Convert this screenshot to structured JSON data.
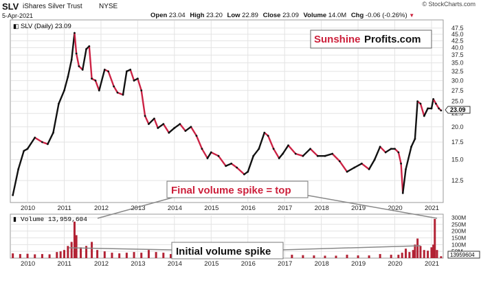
{
  "header": {
    "symbol": "SLV",
    "name": "iShares Silver Trust",
    "exchange": "NYSE",
    "date": "5-Apr-2021",
    "stats": {
      "open_label": "Open",
      "open": "23.04",
      "high_label": "High",
      "high": "23.20",
      "low_label": "Low",
      "low": "22.89",
      "close_label": "Close",
      "close": "23.09",
      "volume_label": "Volume",
      "volume": "14.0M",
      "chg_label": "Chg",
      "chg": "-0.06 (-0.26%)"
    },
    "copyright": "© StockCharts.com"
  },
  "price_panel": {
    "legend": "SLV (Daily) 23.09",
    "current_tag": "23.09",
    "watermark_red": "Sunshine",
    "watermark_black": "Profits.com",
    "annotation_top": "Final volume spike = top"
  },
  "volume_panel": {
    "legend": "Volume 13,959,604",
    "current_tag": "13959604",
    "annotation": "Initial volume spike"
  },
  "colors": {
    "up": "#111111",
    "down": "#cc2244",
    "volume": "#b22234",
    "accent": "#cc1f3a",
    "grid": "#e3e3e3"
  },
  "chart_data": [
    {
      "type": "line",
      "title": "SLV (Daily) 23.09",
      "x": [
        2009.6,
        2009.75,
        2009.9,
        2010.0,
        2010.2,
        2010.4,
        2010.55,
        2010.7,
        2010.85,
        2011.0,
        2011.1,
        2011.2,
        2011.28,
        2011.33,
        2011.4,
        2011.5,
        2011.6,
        2011.68,
        2011.75,
        2011.85,
        2011.95,
        2012.1,
        2012.2,
        2012.35,
        2012.45,
        2012.6,
        2012.7,
        2012.8,
        2012.9,
        2013.0,
        2013.1,
        2013.2,
        2013.3,
        2013.45,
        2013.55,
        2013.7,
        2013.85,
        2014.0,
        2014.15,
        2014.3,
        2014.45,
        2014.6,
        2014.75,
        2014.9,
        2015.0,
        2015.2,
        2015.4,
        2015.55,
        2015.7,
        2015.9,
        2016.0,
        2016.15,
        2016.3,
        2016.45,
        2016.55,
        2016.7,
        2016.85,
        2016.95,
        2017.1,
        2017.3,
        2017.5,
        2017.7,
        2017.9,
        2018.1,
        2018.3,
        2018.5,
        2018.7,
        2018.9,
        2019.1,
        2019.3,
        2019.45,
        2019.6,
        2019.75,
        2019.9,
        2020.0,
        2020.1,
        2020.17,
        2020.22,
        2020.3,
        2020.45,
        2020.55,
        2020.62,
        2020.7,
        2020.8,
        2020.9,
        2021.0,
        2021.05,
        2021.12,
        2021.2,
        2021.26
      ],
      "y": [
        11.0,
        13.8,
        16.2,
        16.5,
        18.2,
        17.5,
        17.2,
        19.0,
        24.5,
        27.5,
        31.0,
        36.0,
        45.5,
        38.0,
        34.0,
        33.0,
        39.5,
        40.5,
        30.5,
        30.0,
        27.5,
        33.0,
        32.5,
        28.5,
        27.0,
        26.5,
        32.5,
        33.0,
        30.0,
        30.5,
        27.5,
        22.0,
        20.5,
        21.5,
        19.8,
        20.5,
        19.0,
        19.8,
        20.5,
        19.3,
        20.0,
        18.5,
        16.5,
        15.2,
        16.0,
        15.5,
        14.2,
        14.5,
        14.0,
        13.2,
        13.5,
        15.5,
        16.5,
        19.0,
        18.5,
        16.5,
        15.2,
        15.8,
        17.0,
        15.8,
        15.5,
        16.5,
        15.5,
        15.5,
        15.8,
        14.8,
        13.5,
        14.0,
        14.5,
        13.8,
        15.0,
        16.8,
        16.0,
        16.5,
        16.5,
        16.0,
        14.5,
        11.2,
        13.8,
        16.8,
        18.0,
        25.0,
        24.5,
        22.0,
        23.5,
        23.5,
        25.5,
        24.5,
        23.5,
        23.09
      ],
      "y_axis": {
        "scale": "log",
        "side": "right",
        "ticks": [
          12.5,
          15.0,
          17.5,
          20.0,
          22.5,
          25.0,
          27.5,
          30.0,
          32.5,
          35.0,
          37.5,
          40.0,
          42.5,
          45.0,
          47.5
        ]
      },
      "x_tick_labels": [
        "2010",
        "2011",
        "2012",
        "2013",
        "2014",
        "2015",
        "2016",
        "2017",
        "2018",
        "2019",
        "2020",
        "2021"
      ],
      "grid": true
    },
    {
      "type": "bar",
      "title": "Volume 13,959,604",
      "x": [
        2009.6,
        2009.8,
        2010.0,
        2010.2,
        2010.4,
        2010.6,
        2010.8,
        2010.9,
        2011.0,
        2011.1,
        2011.2,
        2011.28,
        2011.33,
        2011.45,
        2011.6,
        2011.75,
        2011.9,
        2012.1,
        2012.3,
        2012.5,
        2012.7,
        2012.9,
        2013.1,
        2013.3,
        2013.5,
        2013.7,
        2013.9,
        2014.2,
        2014.5,
        2014.8,
        2015.1,
        2015.4,
        2015.7,
        2016.0,
        2016.3,
        2016.6,
        2016.9,
        2017.2,
        2017.5,
        2017.8,
        2018.1,
        2018.4,
        2018.7,
        2019.0,
        2019.3,
        2019.6,
        2019.9,
        2020.1,
        2020.2,
        2020.3,
        2020.4,
        2020.5,
        2020.55,
        2020.62,
        2020.7,
        2020.8,
        2020.9,
        2021.0,
        2021.05,
        2021.09,
        2021.15,
        2021.26
      ],
      "values": [
        35,
        30,
        32,
        28,
        30,
        28,
        45,
        50,
        60,
        90,
        120,
        270,
        170,
        80,
        90,
        120,
        60,
        50,
        40,
        35,
        40,
        45,
        40,
        60,
        45,
        40,
        30,
        28,
        25,
        30,
        25,
        25,
        20,
        25,
        40,
        45,
        30,
        25,
        22,
        20,
        18,
        18,
        25,
        20,
        20,
        30,
        25,
        25,
        40,
        70,
        45,
        60,
        100,
        145,
        90,
        60,
        55,
        80,
        100,
        290,
        60,
        13.96
      ],
      "units": "M",
      "y_axis": {
        "side": "right",
        "ticks": [
          50,
          100,
          150,
          200,
          250,
          300
        ],
        "tick_labels": [
          "50M",
          "100M",
          "150M",
          "200M",
          "250M",
          "300M"
        ]
      }
    }
  ]
}
